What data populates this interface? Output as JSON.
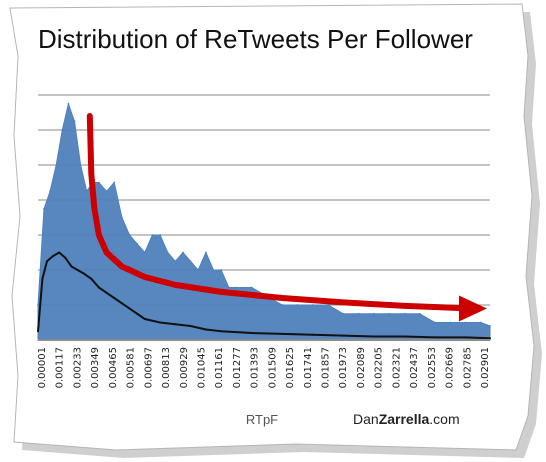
{
  "chart_data": {
    "type": "area",
    "title": "Distribution of ReTweets Per Follower",
    "xlabel": "RTpF",
    "ylabel": "",
    "brand": {
      "name_part1": "Dan",
      "name_part2": "Zarrella",
      "domain": ".com"
    },
    "x_tick_labels": [
      "0.00001",
      "0.00117",
      "0.00233",
      "0.00349",
      "0.00465",
      "0.00581",
      "0.00697",
      "0.00813",
      "0.00929",
      "0.01045",
      "0.01161",
      "0.01277",
      "0.01393",
      "0.01509",
      "0.01625",
      "0.01741",
      "0.01857",
      "0.01973",
      "0.02089",
      "0.02205",
      "0.02321",
      "0.02437",
      "0.02553",
      "0.02669",
      "0.02785",
      "0.02901"
    ],
    "x_range": [
      1e-05,
      0.0296
    ],
    "y_range": [
      0,
      14
    ],
    "gridlines": 7,
    "grid": true,
    "series": [
      {
        "style": "filled-area",
        "color": "#4F81BD",
        "x": [
          1e-05,
          0.0004,
          0.0008,
          0.0012,
          0.0016,
          0.002,
          0.0024,
          0.0028,
          0.0032,
          0.0036,
          0.004,
          0.0045,
          0.005,
          0.0055,
          0.006,
          0.0065,
          0.007,
          0.0075,
          0.008,
          0.0085,
          0.009,
          0.0095,
          0.01,
          0.0105,
          0.011,
          0.0115,
          0.012,
          0.0125,
          0.013,
          0.014,
          0.015,
          0.016,
          0.017,
          0.018,
          0.019,
          0.02,
          0.021,
          0.022,
          0.023,
          0.024,
          0.025,
          0.026,
          0.027,
          0.028,
          0.029,
          0.0296
        ],
        "values": [
          2.0,
          7.5,
          8.5,
          10.0,
          12.0,
          13.5,
          12.5,
          10.0,
          8.5,
          9.0,
          9.0,
          8.5,
          9.0,
          7.0,
          6.0,
          5.5,
          5.0,
          6.0,
          6.0,
          5.0,
          4.5,
          5.0,
          4.5,
          4.0,
          5.0,
          4.0,
          4.0,
          3.0,
          3.0,
          3.0,
          2.5,
          2.0,
          2.0,
          2.0,
          2.0,
          1.5,
          1.5,
          1.5,
          1.5,
          1.5,
          1.5,
          1.0,
          1.0,
          1.0,
          1.0,
          0.8
        ]
      },
      {
        "style": "line",
        "color": "#111111",
        "x": [
          1e-05,
          0.0003,
          0.0006,
          0.001,
          0.0014,
          0.0018,
          0.0022,
          0.0026,
          0.003,
          0.0035,
          0.004,
          0.0045,
          0.005,
          0.0055,
          0.006,
          0.007,
          0.008,
          0.009,
          0.01,
          0.011,
          0.012,
          0.014,
          0.016,
          0.018,
          0.02,
          0.022,
          0.024,
          0.026,
          0.028,
          0.0296
        ],
        "values": [
          0.5,
          3.5,
          4.5,
          4.8,
          5.0,
          4.7,
          4.2,
          4.0,
          3.8,
          3.5,
          3.0,
          2.7,
          2.4,
          2.1,
          1.8,
          1.2,
          1.0,
          0.9,
          0.8,
          0.6,
          0.5,
          0.4,
          0.35,
          0.3,
          0.25,
          0.2,
          0.2,
          0.15,
          0.15,
          0.1
        ]
      },
      {
        "style": "arrow",
        "color": "#CC0000",
        "x": [
          0.0034,
          0.0035,
          0.0037,
          0.004,
          0.0045,
          0.0055,
          0.007,
          0.009,
          0.012,
          0.016,
          0.02,
          0.024,
          0.027,
          0.0294
        ],
        "values": [
          12.8,
          9.5,
          7.5,
          6.0,
          5.0,
          4.2,
          3.6,
          3.15,
          2.75,
          2.4,
          2.15,
          1.95,
          1.85,
          1.8
        ]
      }
    ]
  }
}
